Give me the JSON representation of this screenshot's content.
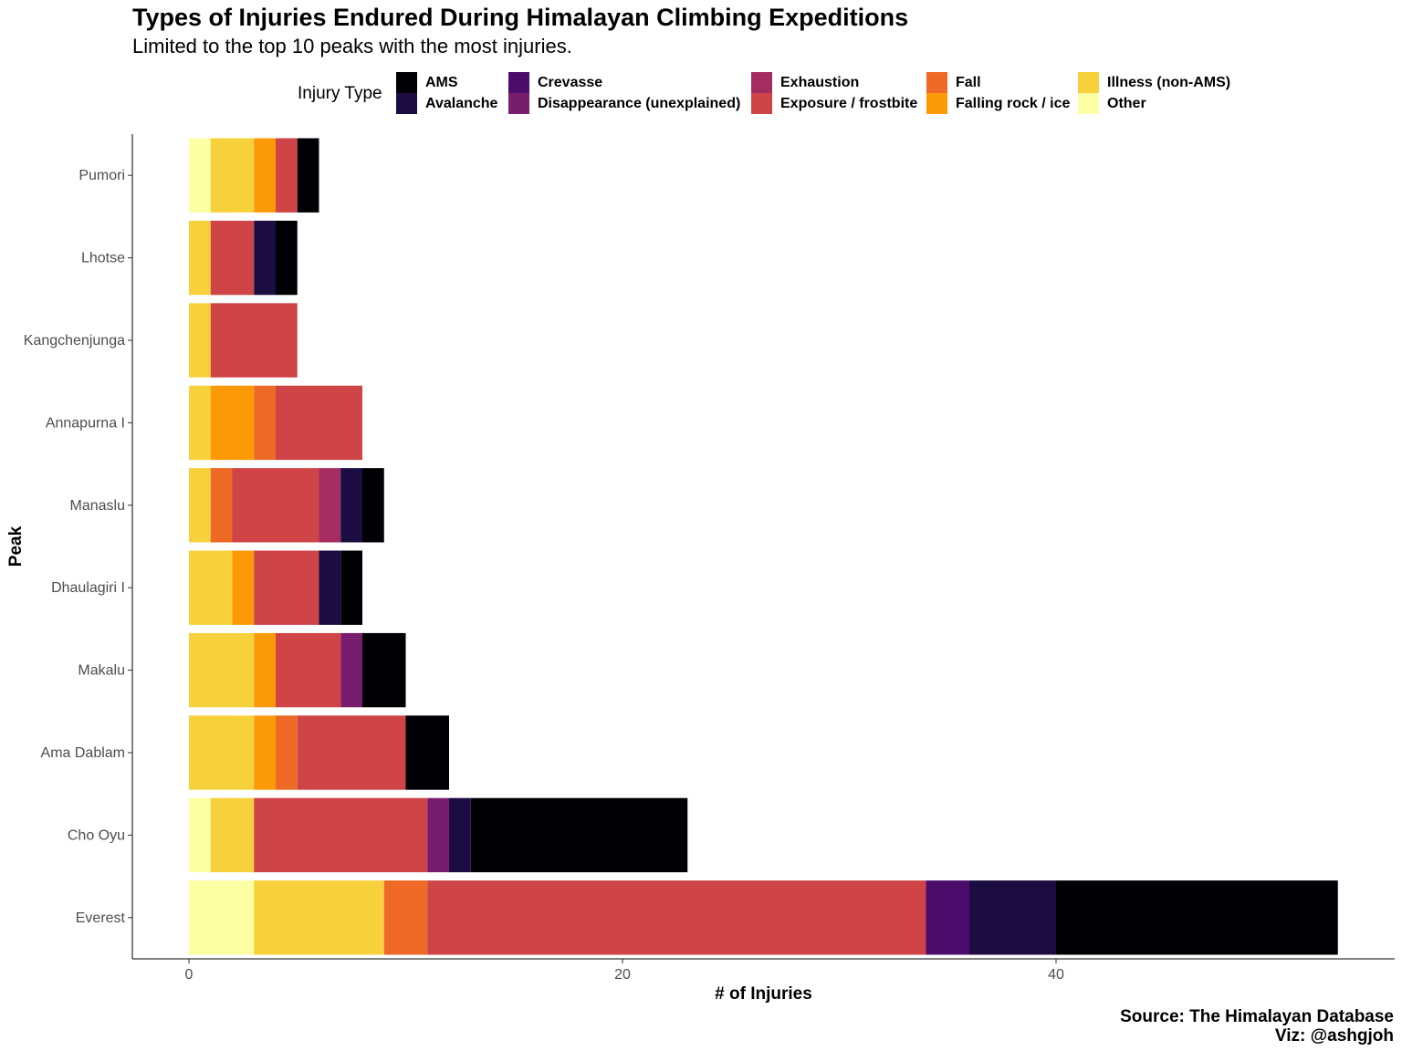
{
  "chart_data": {
    "type": "bar",
    "orientation": "horizontal",
    "stacked": true,
    "title": "Types of Injuries Endured During Himalayan Climbing Expeditions",
    "subtitle": "Limited to the top 10 peaks with the most injuries.",
    "xlabel": "# of Injuries",
    "ylabel": "Peak",
    "xlim": [
      0,
      55
    ],
    "xticks": [
      "0",
      "20",
      "40"
    ],
    "xtick_values": [
      0,
      20,
      40
    ],
    "legend_title": "Injury Type",
    "legend_position": "top",
    "caption": [
      "Source: The Himalayan Database",
      "Viz: @ashgjoh"
    ],
    "categories": [
      "Everest",
      "Cho Oyu",
      "Ama Dablam",
      "Makalu",
      "Dhaulagiri I",
      "Manaslu",
      "Annapurna I",
      "Kangchenjunga",
      "Lhotse",
      "Pumori"
    ],
    "series": [
      {
        "name": "Other",
        "color": "#FCFFA4",
        "values": [
          3,
          1,
          0,
          0,
          0,
          0,
          0,
          0,
          0,
          1
        ]
      },
      {
        "name": "Illness (non-AMS)",
        "color": "#F6D13C",
        "values": [
          6,
          2,
          3,
          3,
          2,
          1,
          1,
          1,
          1,
          2
        ]
      },
      {
        "name": "Falling rock / ice",
        "color": "#FB9A06",
        "values": [
          0,
          0,
          1,
          1,
          1,
          0,
          2,
          0,
          0,
          1
        ]
      },
      {
        "name": "Fall",
        "color": "#ED6925",
        "values": [
          2,
          0,
          1,
          0,
          0,
          1,
          1,
          0,
          0,
          0
        ]
      },
      {
        "name": "Exposure / frostbite",
        "color": "#CF4446",
        "values": [
          23,
          8,
          5,
          3,
          3,
          4,
          4,
          4,
          2,
          1
        ]
      },
      {
        "name": "Exhaustion",
        "color": "#A52C60",
        "values": [
          0,
          0,
          0,
          0,
          0,
          1,
          0,
          0,
          0,
          0
        ]
      },
      {
        "name": "Disappearance (unexplained)",
        "color": "#781C6D",
        "values": [
          0,
          1,
          0,
          1,
          0,
          0,
          0,
          0,
          0,
          0
        ]
      },
      {
        "name": "Crevasse",
        "color": "#4B0C6B",
        "values": [
          2,
          0,
          0,
          0,
          0,
          0,
          0,
          0,
          0,
          0
        ]
      },
      {
        "name": "Avalanche",
        "color": "#1B0C41",
        "values": [
          4,
          1,
          0,
          0,
          1,
          1,
          0,
          0,
          1,
          0
        ]
      },
      {
        "name": "AMS",
        "color": "#000004",
        "values": [
          13,
          10,
          2,
          2,
          1,
          1,
          0,
          0,
          1,
          1
        ]
      }
    ],
    "legend_order": [
      "AMS",
      "Avalanche",
      "Crevasse",
      "Disappearance (unexplained)",
      "Exhaustion",
      "Exposure / frostbite",
      "Fall",
      "Falling rock / ice",
      "Illness (non-AMS)",
      "Other"
    ]
  }
}
